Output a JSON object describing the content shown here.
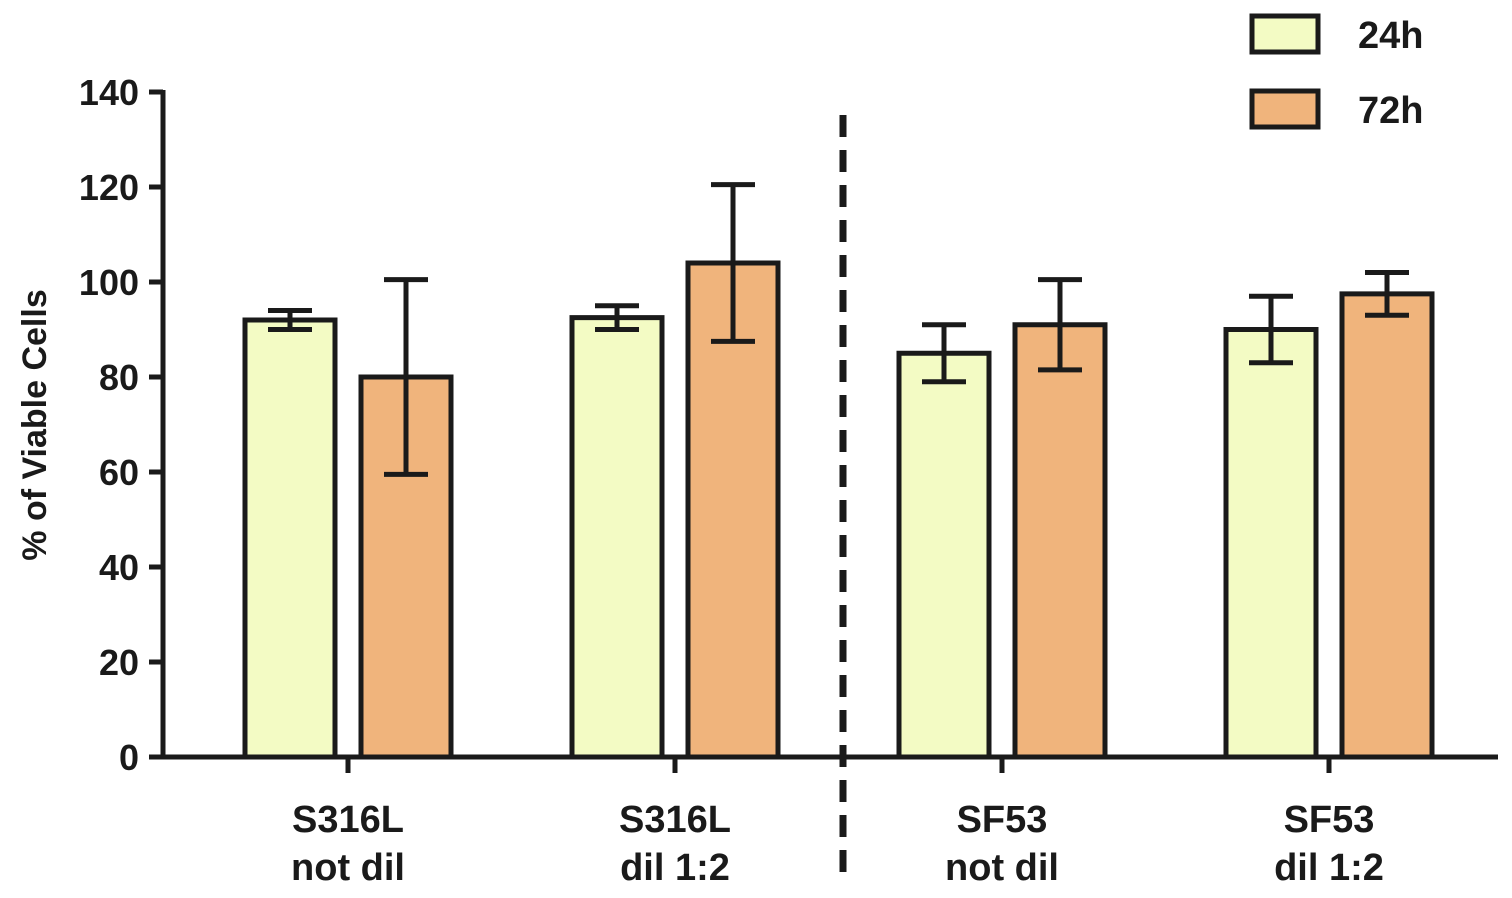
{
  "chart_data": {
    "type": "bar",
    "title": "",
    "xlabel": "",
    "ylabel": "% of Viable Cells",
    "ylim": [
      0,
      140
    ],
    "yticks": [
      0,
      20,
      40,
      60,
      80,
      100,
      120,
      140
    ],
    "categories": [
      {
        "line1": "S316L",
        "line2": "not dil"
      },
      {
        "line1": "S316L",
        "line2": "dil 1:2"
      },
      {
        "line1": "SF53",
        "line2": "not dil"
      },
      {
        "line1": "SF53",
        "line2": "dil 1:2"
      }
    ],
    "series": [
      {
        "name": "24h",
        "color": "#f3fbc4",
        "values": [
          92,
          92.5,
          85,
          90
        ],
        "errors": [
          2,
          2.5,
          6,
          7
        ]
      },
      {
        "name": "72h",
        "color": "#f0b47c",
        "values": [
          80,
          104,
          91,
          97.5
        ],
        "errors": [
          20.5,
          16.5,
          9.5,
          4.5
        ]
      }
    ],
    "group_separator": "dashed vertical line between S316L and SF53 groups",
    "legend_position": "top-right",
    "grid": false
  }
}
